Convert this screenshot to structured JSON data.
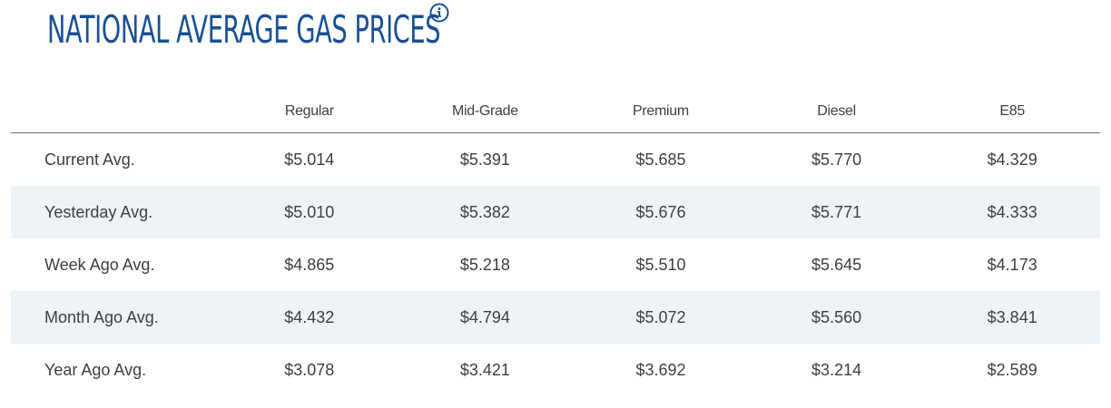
{
  "header": {
    "title": "NATIONAL AVERAGE GAS PRICES",
    "info_icon": "info-circle-icon"
  },
  "table": {
    "columns": [
      "",
      "Regular",
      "Mid-Grade",
      "Premium",
      "Diesel",
      "E85"
    ],
    "rows": [
      {
        "label": "Current Avg.",
        "values": [
          "$5.014",
          "$5.391",
          "$5.685",
          "$5.770",
          "$4.329"
        ]
      },
      {
        "label": "Yesterday Avg.",
        "values": [
          "$5.010",
          "$5.382",
          "$5.676",
          "$5.771",
          "$4.333"
        ]
      },
      {
        "label": "Week Ago Avg.",
        "values": [
          "$4.865",
          "$5.218",
          "$5.510",
          "$5.645",
          "$4.173"
        ]
      },
      {
        "label": "Month Ago Avg.",
        "values": [
          "$4.432",
          "$4.794",
          "$5.072",
          "$5.560",
          "$3.841"
        ]
      },
      {
        "label": "Year Ago Avg.",
        "values": [
          "$3.078",
          "$3.421",
          "$3.692",
          "$3.214",
          "$2.589"
        ]
      }
    ]
  },
  "colors": {
    "title": "#1a4f95",
    "alt_row_bg": "#eef3f8",
    "text": "#3f3f3f",
    "header_rule": "#6e6e6e"
  }
}
